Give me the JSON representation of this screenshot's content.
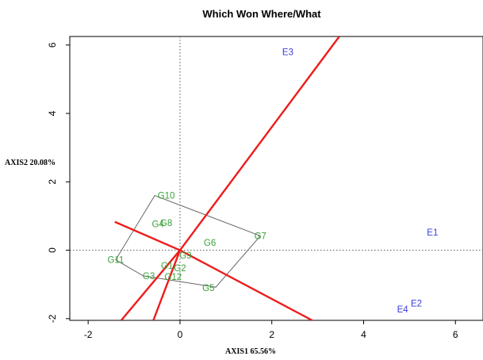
{
  "chart_data": {
    "type": "scatter",
    "title": "Which Won Where/What",
    "xlabel": "AXIS1 65.56%",
    "ylabel": "AXIS2 20.08%",
    "xlim": [
      -2.4,
      6.6
    ],
    "ylim": [
      -2.05,
      6.25
    ],
    "x_ticks": [
      -2,
      0,
      2,
      4,
      6
    ],
    "y_ticks": [
      -2,
      0,
      2,
      4,
      6
    ],
    "reference_lines": {
      "x": 0,
      "y": 0,
      "style": "dotted"
    },
    "colors": {
      "genotype": "#3aa03a",
      "environment": "#3b3be0",
      "sector_line": "#ee1c1c",
      "hull": "#666666"
    },
    "genotypes": [
      {
        "label": "G10",
        "x": -0.3,
        "y": 1.6
      },
      {
        "label": "G8",
        "x": -0.3,
        "y": 0.8
      },
      {
        "label": "G4",
        "x": -0.48,
        "y": 0.77
      },
      {
        "label": "G6",
        "x": 0.65,
        "y": 0.22
      },
      {
        "label": "G7",
        "x": 1.75,
        "y": 0.42
      },
      {
        "label": "G11",
        "x": -1.4,
        "y": -0.28
      },
      {
        "label": "G9",
        "x": 0.12,
        "y": -0.15
      },
      {
        "label": "G1",
        "x": -0.28,
        "y": -0.45
      },
      {
        "label": "G2",
        "x": 0.0,
        "y": -0.52
      },
      {
        "label": "G3",
        "x": -0.68,
        "y": -0.75
      },
      {
        "label": "G12",
        "x": -0.15,
        "y": -0.78
      },
      {
        "label": "G5",
        "x": 0.62,
        "y": -1.1
      }
    ],
    "environments": [
      {
        "label": "E3",
        "x": 2.35,
        "y": 5.8
      },
      {
        "label": "E1",
        "x": 5.5,
        "y": 0.52
      },
      {
        "label": "E2",
        "x": 5.15,
        "y": -1.55
      },
      {
        "label": "E4",
        "x": 4.85,
        "y": -1.72
      }
    ],
    "hull": [
      {
        "x": -0.55,
        "y": 1.6
      },
      {
        "x": 1.75,
        "y": 0.42
      },
      {
        "x": 0.78,
        "y": -1.08
      },
      {
        "x": -0.8,
        "y": -0.75
      },
      {
        "x": -1.4,
        "y": -0.28
      }
    ],
    "sector_lines": [
      {
        "from": {
          "x": 0,
          "y": 0
        },
        "to": {
          "x": 3.47,
          "y": 6.25
        }
      },
      {
        "from": {
          "x": 0,
          "y": 0
        },
        "to": {
          "x": -1.28,
          "y": -2.05
        }
      },
      {
        "from": {
          "x": 0,
          "y": 0
        },
        "to": {
          "x": -0.58,
          "y": -2.05
        }
      },
      {
        "from": {
          "x": 0,
          "y": 0
        },
        "to": {
          "x": -1.42,
          "y": 0.83
        }
      },
      {
        "from": {
          "x": 0,
          "y": 0
        },
        "to": {
          "x": 2.88,
          "y": -2.05
        }
      }
    ]
  }
}
